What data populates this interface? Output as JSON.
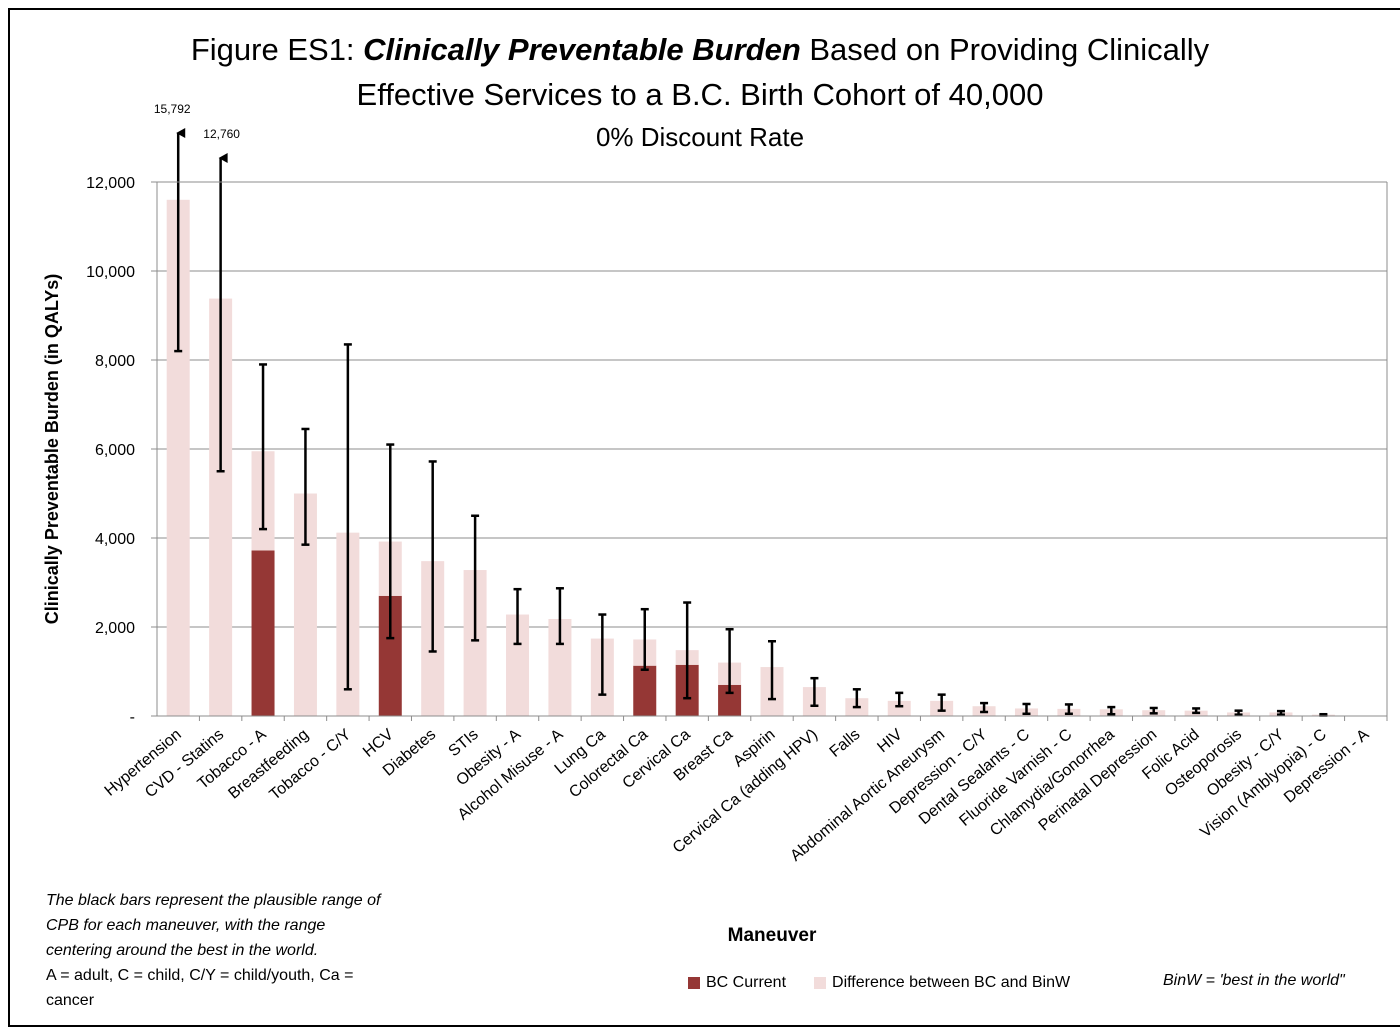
{
  "title": {
    "prefix": "Figure ES1: ",
    "emphasis": "Clinically Preventable Burden",
    "suffix": " Based on Providing Clinically",
    "line2": "Effective Services to a B.C. Birth Cohort of 40,000",
    "subtitle": "0% Discount Rate"
  },
  "chart_data": {
    "type": "bar",
    "stacked": true,
    "ylabel": "Clinically Preventable Burden (in QALYs)",
    "xlabel": "Maneuver",
    "ylim": [
      0,
      12000
    ],
    "yticks": [
      {
        "value": 0,
        "label": "-"
      },
      {
        "value": 2000,
        "label": "2,000"
      },
      {
        "value": 4000,
        "label": "4,000"
      },
      {
        "value": 6000,
        "label": "6,000"
      },
      {
        "value": 8000,
        "label": "8,000"
      },
      {
        "value": 10000,
        "label": "10,000"
      },
      {
        "value": 12000,
        "label": "12,000"
      }
    ],
    "grid": "horizontal",
    "legend_position": "bottom",
    "categories": [
      "Hypertension",
      "CVD - Statins",
      "Tobacco - A",
      "Breastfeeding",
      "Tobacco - C/Y",
      "HCV",
      "Diabetes",
      "STIs",
      "Obesity - A",
      "Alcohol Misuse - A",
      "Lung Ca",
      "Colorectal Ca",
      "Cervical Ca",
      "Breast Ca",
      "Aspirin",
      "Cervical Ca (adding HPV)",
      "Falls",
      "HIV",
      "Abdominal Aortic Aneurysm",
      "Depression - C/Y",
      "Dental Sealants - C",
      "Fluoride Varnish - C",
      "Chlamydia/Gonorrhea",
      "Perinatal Depression",
      "Folic Acid",
      "Osteoporosis",
      "Obesity - C/Y",
      "Vision (Amblyopia) - C",
      "Depression - A"
    ],
    "series": [
      {
        "name": "BC Current",
        "color": "#953735",
        "values": [
          0,
          0,
          3720,
          0,
          0,
          2700,
          0,
          0,
          0,
          0,
          0,
          1130,
          1150,
          700,
          0,
          0,
          0,
          0,
          0,
          0,
          0,
          0,
          0,
          0,
          0,
          0,
          0,
          0,
          0
        ]
      },
      {
        "name": "Difference between BC and BinW",
        "color": "#f2dcdb",
        "values": [
          11600,
          9380,
          2230,
          5000,
          4120,
          1220,
          3480,
          3280,
          2280,
          2180,
          1740,
          590,
          330,
          500,
          1100,
          650,
          400,
          340,
          340,
          220,
          170,
          160,
          150,
          130,
          120,
          80,
          80,
          30,
          0
        ]
      }
    ],
    "ranges": [
      {
        "low": 8200,
        "high": 15792,
        "label": "15,792",
        "arrow": true
      },
      {
        "low": 5500,
        "high": 12760,
        "label": "12,760",
        "arrow": true
      },
      {
        "low": 4200,
        "high": 7900
      },
      {
        "low": 3850,
        "high": 6450
      },
      {
        "low": 600,
        "high": 8350
      },
      {
        "low": 1750,
        "high": 6100
      },
      {
        "low": 1450,
        "high": 5720
      },
      {
        "low": 1700,
        "high": 4500
      },
      {
        "low": 1620,
        "high": 2850
      },
      {
        "low": 1620,
        "high": 2870
      },
      {
        "low": 480,
        "high": 2280
      },
      {
        "low": 1040,
        "high": 2400
      },
      {
        "low": 400,
        "high": 2550
      },
      {
        "low": 520,
        "high": 1950
      },
      {
        "low": 380,
        "high": 1680
      },
      {
        "low": 230,
        "high": 850
      },
      {
        "low": 200,
        "high": 600
      },
      {
        "low": 220,
        "high": 520
      },
      {
        "low": 120,
        "high": 480
      },
      {
        "low": 90,
        "high": 290
      },
      {
        "low": 50,
        "high": 270
      },
      {
        "low": 50,
        "high": 260
      },
      {
        "low": 40,
        "high": 200
      },
      {
        "low": 60,
        "high": 180
      },
      {
        "low": 70,
        "high": 170
      },
      {
        "low": 30,
        "high": 120
      },
      {
        "low": 30,
        "high": 110
      },
      {
        "low": 10,
        "high": 40
      },
      {
        "low": 0,
        "high": 0
      }
    ]
  },
  "note": {
    "line1": "The black bars represent the plausible range of",
    "line2": "CPB for each maneuver, with the range",
    "line3": "centering around the best in the world.",
    "line4": "A = adult, C = child, C/Y = child/youth, Ca =",
    "line5": "cancer"
  },
  "legend": {
    "current": "BC Current",
    "difference": "Difference between BC and BinW"
  },
  "binw_note": "BinW = 'best in the world\""
}
